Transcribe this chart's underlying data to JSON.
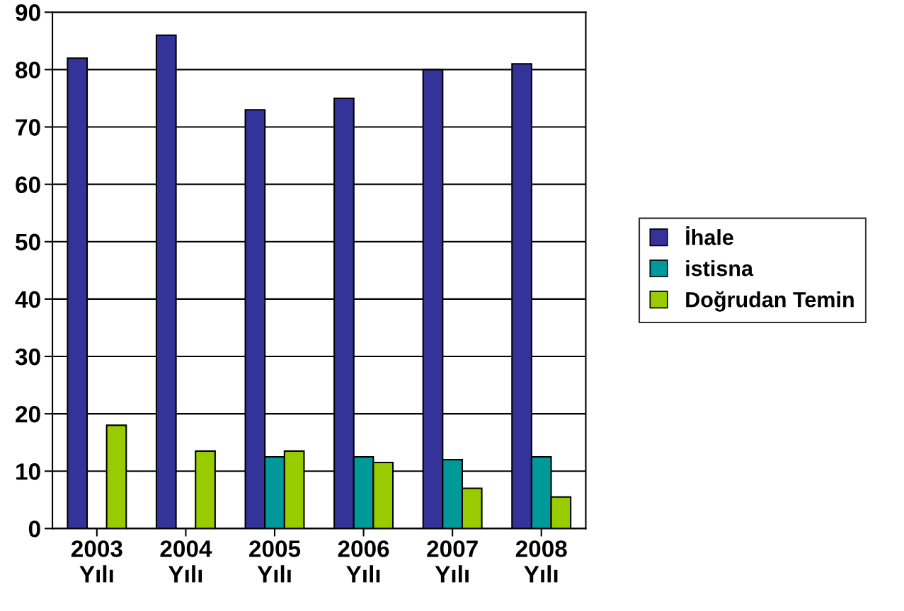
{
  "chart_data": {
    "type": "bar",
    "categories": [
      "2003\nYılı",
      "2004\nYılı",
      "2005\nYılı",
      "2006\nYılı",
      "2007\nYılı",
      "2008\nYılı"
    ],
    "series": [
      {
        "name": "İhale",
        "color": "#333399",
        "values": [
          82,
          86,
          73,
          75,
          80,
          81
        ]
      },
      {
        "name": "istisna",
        "color": "#009999",
        "values": [
          null,
          null,
          12.5,
          12.5,
          12,
          12.5
        ]
      },
      {
        "name": "Doğrudan Temin",
        "color": "#99cc00",
        "values": [
          18,
          13.5,
          13.5,
          11.5,
          7,
          5.5
        ]
      }
    ],
    "ylim": [
      0,
      90
    ],
    "yticks": [
      0,
      10,
      20,
      30,
      40,
      50,
      60,
      70,
      80,
      90
    ],
    "grid": "y",
    "legend": "right"
  }
}
